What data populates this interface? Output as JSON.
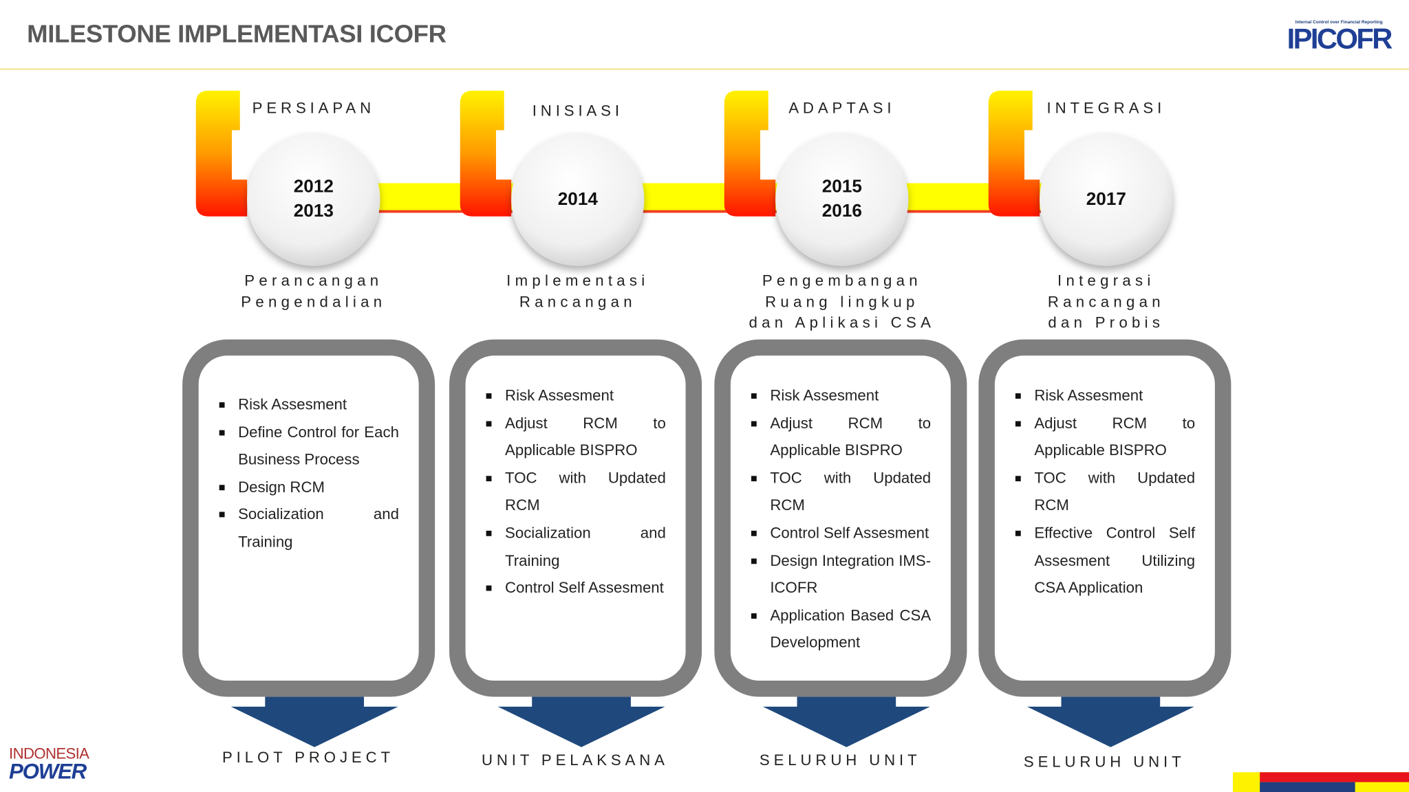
{
  "header": {
    "title": "MILESTONE IMPLEMENTASI ICOFR",
    "logo_caption": "Internal Control over Financial Reporting",
    "logo": "IPICOFR"
  },
  "footer": {
    "brand_top": "INDONESIA",
    "brand_bottom": "POWER"
  },
  "phases": [
    {
      "label": "PERSIAPAN",
      "years": [
        "2012",
        "2013"
      ],
      "description": [
        "Perancangan",
        "Pengendalian"
      ],
      "items": [
        "Risk Assesment",
        "Define Control for Each Business Process",
        "Design RCM",
        "Socialization and Training"
      ],
      "outcome": "PILOT PROJECT"
    },
    {
      "label": "INISIASI",
      "years": [
        "2014"
      ],
      "description": [
        "Implementasi",
        "Rancangan"
      ],
      "items": [
        "Risk Assesment",
        "Adjust RCM to Applicable BISPRO",
        "TOC with Updated RCM",
        "Socialization and Training",
        "Control Self Assesment"
      ],
      "outcome": "UNIT PELAKSANA"
    },
    {
      "label": "ADAPTASI",
      "years": [
        "2015",
        "2016"
      ],
      "description": [
        "Pengembangan",
        "Ruang lingkup",
        "dan Aplikasi CSA"
      ],
      "items": [
        "Risk Assesment",
        "Adjust RCM to Applicable BISPRO",
        "TOC with Updated RCM",
        "Control Self Assesment",
        "Design Integration IMS-ICOFR",
        "Application Based CSA Development"
      ],
      "outcome": "SELURUH UNIT"
    },
    {
      "label": "INTEGRASI",
      "years": [
        "2017"
      ],
      "description": [
        "Integrasi",
        "Rancangan",
        "dan Probis"
      ],
      "items": [
        "Risk Assesment",
        "Adjust RCM to Applicable BISPRO",
        "TOC with Updated RCM",
        "Effective Control Self Assesment Utilizing CSA Application"
      ],
      "outcome": "SELURUH UNIT"
    }
  ]
}
